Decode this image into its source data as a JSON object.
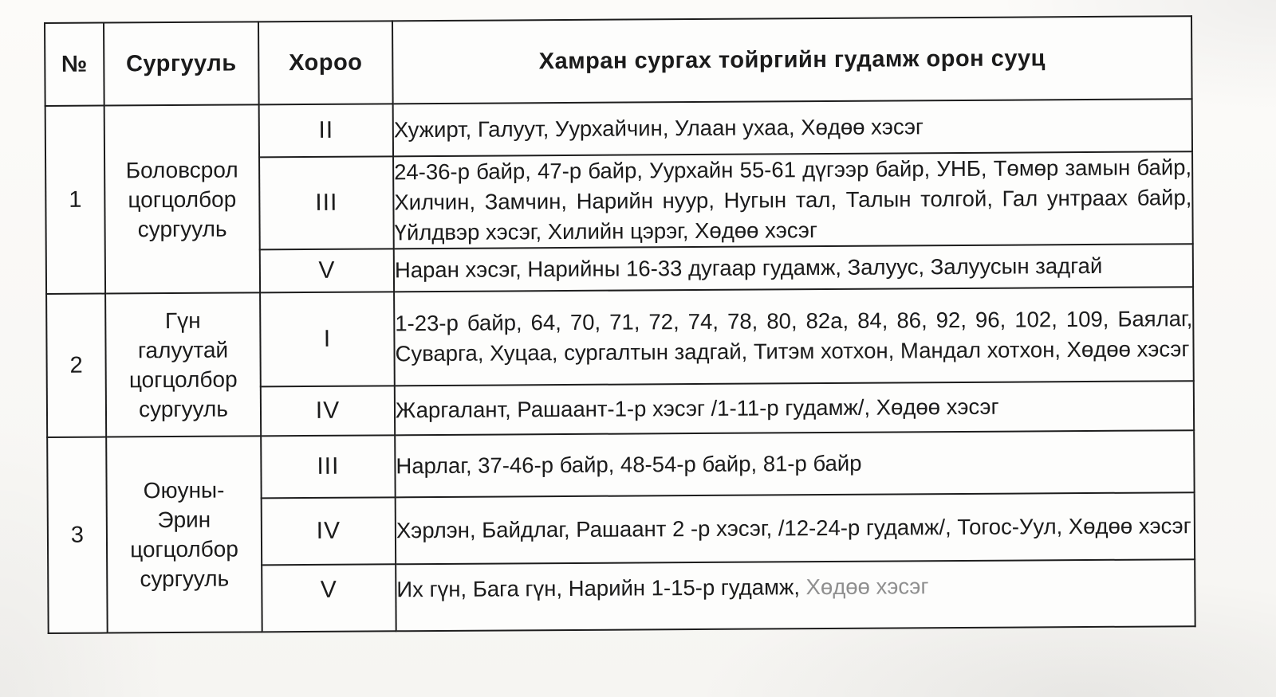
{
  "table": {
    "headers": {
      "num": "№",
      "school": "Сургууль",
      "khoroo": "Хороо",
      "area": "Хамран сургах тойргийн гудамж орон сууц"
    },
    "groups": [
      {
        "num": "1",
        "school": "Боловсрол\nцогцолбор\nсургууль",
        "rows": [
          {
            "khoroo": "II",
            "text": "Хужирт, Галуут, Уурхайчин, Улаан ухаа, Хөдөө хэсэг"
          },
          {
            "khoroo": "III",
            "text": "24-36-р байр, 47-р байр, Уурхайн 55-61 дүгээр байр, УНБ, Төмөр замын байр, Хилчин, Замчин, Нарийн нуур, Нугын тал, Талын толгой, Гал унтраах байр, Үйлдвэр хэсэг, Хилийн цэрэг, Хөдөө хэсэг"
          },
          {
            "khoroo": "V",
            "text": "Наран хэсэг, Нарийны 16-33 дугаар гудамж, Залуус, Залуусын задгай"
          }
        ]
      },
      {
        "num": "2",
        "school": "Гүн\nгалуутай\nцогцолбор\nсургууль",
        "rows": [
          {
            "khoroo": "I",
            "text": "1-23-р байр, 64, 70, 71, 72, 74, 78, 80, 82а, 84, 86, 92, 96, 102, 109, Баялаг, Суварга, Хуцаа, сургалтын задгай, Титэм хотхон, Мандал хотхон, Хөдөө хэсэг"
          },
          {
            "khoroo": "IV",
            "text": "Жаргалант, Рашаант-1-р хэсэг /1-11-р гудамж/, Хөдөө хэсэг"
          }
        ]
      },
      {
        "num": "3",
        "school": "Оюуны-\nЭрин\nцогцолбор\nсургууль",
        "rows": [
          {
            "khoroo": "III",
            "text": "Нарлаг, 37-46-р байр, 48-54-р байр, 81-р байр"
          },
          {
            "khoroo": "IV",
            "text": "Хэрлэн, Байдлаг, Рашаант 2 -р хэсэг, /12-24-р гудамж/, Тогос-Уул, Хөдөө хэсэг"
          },
          {
            "khoroo": "V",
            "text": "Их гүн, Бага гүн, Нарийн 1-15-р гудамж, ",
            "text_faded": "Хөдөө хэсэг"
          }
        ]
      }
    ]
  }
}
